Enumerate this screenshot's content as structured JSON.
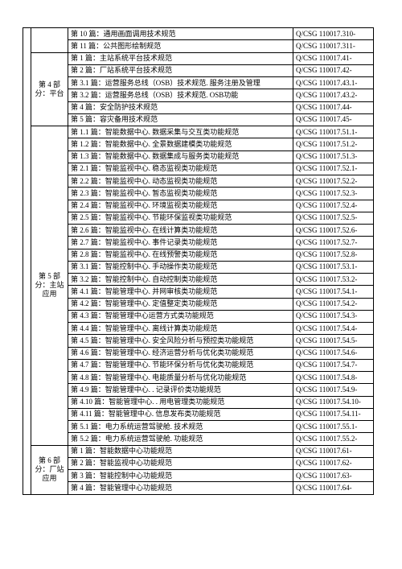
{
  "groups": [
    {
      "label": "",
      "rows": [
        {
          "desc": "第 10 篇：通用画面调用技术规范",
          "code": "Q/CSG 110017.310-"
        },
        {
          "desc": "第 11 篇：公共图形绘制规范",
          "code": "Q/CSG 110017.311-"
        }
      ]
    },
    {
      "label": "第 4 部分：平台",
      "rows": [
        {
          "desc": "第 1 篇：主站系统平台技术规范",
          "code": "Q/CSG 110017.41-"
        },
        {
          "desc": "第 2 篇：厂站系统平台技术规范",
          "code": "Q/CSG 110017.42-"
        },
        {
          "desc": "第 3.1 篇：运营服务总线（OSB）技术规范. 服务注册及管理",
          "code": "Q/CSG 110017.43.1-"
        },
        {
          "desc": "第 3.2 篇：运营服务总线（OSB）技术规范. OSB功能",
          "code": "Q/CSG 110017.43.2-"
        },
        {
          "desc": "第 4 篇：安全防护技术规范",
          "code": "Q/CSG 110017.44-"
        },
        {
          "desc": "第 5 篇：容灾备用技术规范",
          "code": "Q/CSG 110017.45-"
        }
      ]
    },
    {
      "label": "第 5 部分：主站应用",
      "rows": [
        {
          "desc": "第 1.1 篇：智能数据中心. 数据采集与交互类功能规范",
          "code": "Q/CSG 110017.51.1-"
        },
        {
          "desc": "第 1.2 篇：智能数据中心. 全景数据建模类功能规范",
          "code": "Q/CSG 110017.51.2-"
        },
        {
          "desc": "第 1.3 篇：智能数据中心. 数据集成与服务类功能规范",
          "code": "Q/CSG 110017.51.3-"
        },
        {
          "desc": "第 2.1 篇：智能监视中心. 稳态监视类功能规范",
          "code": "Q/CSG 110017.52.1-"
        },
        {
          "desc": "第 2.2 篇：智能监视中心. 动态监视类功能规范",
          "code": "Q/CSG 110017.52.2-"
        },
        {
          "desc": "第 2.3 篇：智能监视中心. 暂态监视类功能规范",
          "code": "Q/CSG 110017.52.3-"
        },
        {
          "desc": "第 2.4 篇：智能监视中心. 环境监视类功能规范",
          "code": "Q/CSG 110017.52.4-"
        },
        {
          "desc": "第 2.5 篇：智能监视中心. 节能环保监视类功能规范",
          "code": "Q/CSG 110017.52.5-"
        },
        {
          "desc": "第 2.6 篇：智能监视中心. 在线计算类功能规范",
          "code": "Q/CSG 110017.52.6-"
        },
        {
          "desc": "第 2.7 篇：智能监视中心. 事件记录类功能规范",
          "code": "Q/CSG 110017.52.7-"
        },
        {
          "desc": "第 2.8 篇：智能监视中心. 在线预警类功能规范",
          "code": "Q/CSG 110017.52.8-"
        },
        {
          "desc": "第 3.1 篇：智能控制中心. 手动操作类功能规范",
          "code": "Q/CSG 110017.53.1-"
        },
        {
          "desc": "第 3.2 篇：智能控制中心. 自动控制类功能规范",
          "code": "Q/CSG 110017.53.2-"
        },
        {
          "desc": "第 4.1 篇：智能管理中心. 并网审核类功能规范",
          "code": "Q/CSG 110017.54.1-"
        },
        {
          "desc": "第 4.2 篇：智能管理中心. 定值整定类功能规范",
          "code": "Q/CSG 110017.54.2-"
        },
        {
          "desc": "第 4.3 篇：智能管理中心运营方式类功能规范",
          "code": "Q/CSG 110017.54.3-"
        },
        {
          "desc": "第 4.4 篇：智能管理中心. 离线计算类功能规范",
          "code": "Q/CSG 110017.54.4-"
        },
        {
          "desc": "第 4.5 篇：智能管理中心. 安全风险分析与预控类功能规范",
          "code": "Q/CSG 110017.54.5-"
        },
        {
          "desc": "第 4.6 篇：智能管理中心. 经济运营分析与优化类功能规范",
          "code": "Q/CSG 110017.54.6-"
        },
        {
          "desc": "第 4.7 篇：智能管理中心. 节能环保分析与优化类功能规范",
          "code": "Q/CSG 110017.54.7-"
        },
        {
          "desc": "第 4.8 篇：智能管理中心. 电能质量分析与优化功能规范",
          "code": "Q/CSG 110017.54.8-"
        },
        {
          "desc": "第 4.9 篇：智能管理中心. . 记录评价类功能规范",
          "code": "Q/CSG 110017.54.9-"
        },
        {
          "desc": "第 4.10 篇：智能管理中心. . 用电管理类功能规范",
          "code": "Q/CSG 110017.54.10-"
        },
        {
          "desc": "第 4.11 篇：智能管理中心. 信息发布类功能规范",
          "code": "Q/CSG 110017.54.11-"
        },
        {
          "desc": "第 5.1 篇：电力系统运营驾驶舱. 技术规范",
          "code": "Q/CSG 110017.55.1-"
        },
        {
          "desc": "第 5.2 篇：电力系统运营驾驶舱. 功能规范",
          "code": "Q/CSG 110017.55.2-"
        }
      ]
    },
    {
      "label": "第 6 部分：厂站应用",
      "rows": [
        {
          "desc": "第 1 篇：智能数据中心功能规范",
          "code": "Q/CSG 110017.61-"
        },
        {
          "desc": "第 2 篇：智能监视中心功能规范",
          "code": "Q/CSG 110017.62-"
        },
        {
          "desc": "第 3 篇：智能控制中心功能规范",
          "code": "Q/CSG 110017.63-"
        },
        {
          "desc": "第 4 篇：智能管理中心功能规范",
          "code": "Q/CSG 110017.64-"
        }
      ]
    }
  ],
  "leftcol_rowspan": 41
}
